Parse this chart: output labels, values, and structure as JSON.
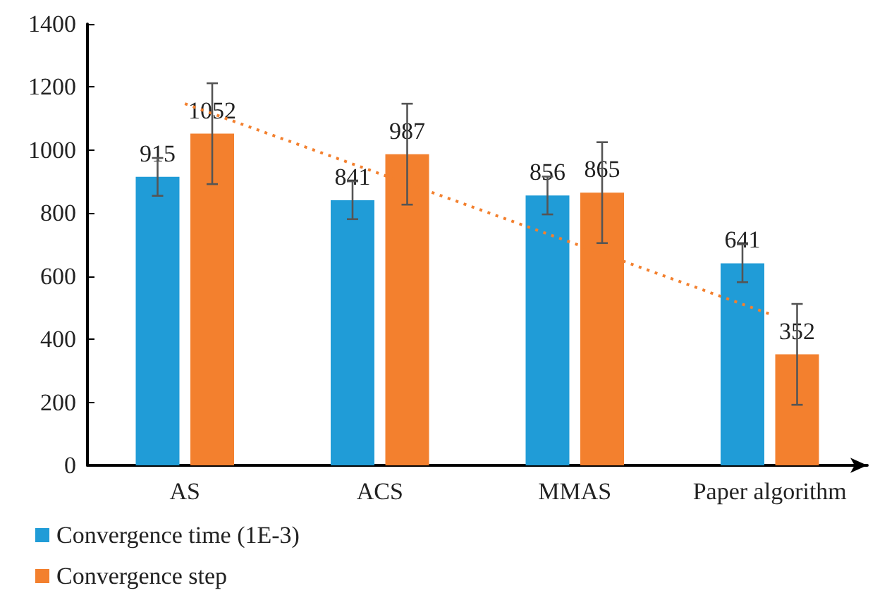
{
  "chart_data": {
    "type": "bar",
    "categories": [
      "AS",
      "ACS",
      "MMAS",
      "Paper algorithm"
    ],
    "series": [
      {
        "name": "Convergence time (1E-3)",
        "color": "#209cd7",
        "values": [
          915,
          841,
          856,
          641
        ],
        "value_labels": [
          "915",
          "841",
          "856",
          "641"
        ],
        "errors": [
          60,
          60,
          60,
          60
        ]
      },
      {
        "name": "Convergence step",
        "color": "#f3802e",
        "values": [
          1052,
          987,
          865,
          352
        ],
        "value_labels": [
          "1052",
          "987",
          "865",
          "352"
        ],
        "errors": [
          160,
          160,
          160,
          160
        ]
      },
      {
        "type": "line",
        "color": "#f3802e",
        "x": [
          "AS",
          "ACS",
          "MMAS",
          "Paper algorithm"
        ],
        "values": [
          1147,
          925,
          703,
          480
        ],
        "line_style": "dotted",
        "marker": "none"
      }
    ],
    "ylim": [
      0,
      1400
    ],
    "yticks": [
      0,
      200,
      400,
      600,
      800,
      1000,
      1200,
      1400
    ],
    "grid": false,
    "legend": "bottom left"
  }
}
